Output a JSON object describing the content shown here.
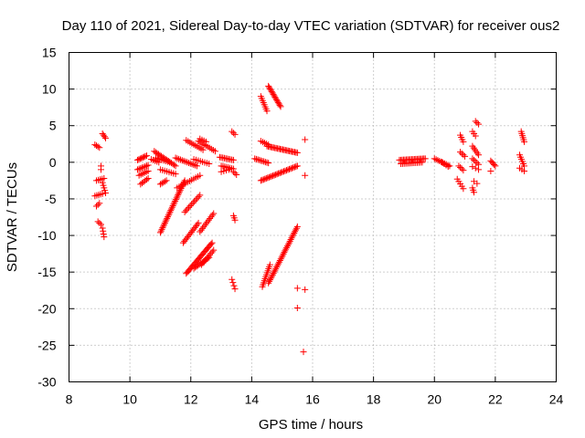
{
  "chart_data": {
    "type": "scatter",
    "title": "Day 110 of 2021, Sidereal Day-to-day VTEC variation (SDTVAR) for receiver ous2",
    "xlabel": "GPS time / hours",
    "ylabel": "SDTVAR / TECUs",
    "xlim": [
      8,
      24
    ],
    "ylim": [
      -30,
      15
    ],
    "xticks": [
      8,
      10,
      12,
      14,
      16,
      18,
      20,
      22,
      24
    ],
    "yticks": [
      15,
      10,
      5,
      0,
      -5,
      -10,
      -15,
      -20,
      -25,
      -30
    ],
    "xtick_labels": [
      "8",
      "10",
      "12",
      "14",
      "16",
      "18",
      "20",
      "22",
      "24"
    ],
    "ytick_labels": [
      "15",
      "10",
      "5",
      "0",
      "-5",
      "-10",
      "-15",
      "-20",
      "-25",
      "-30"
    ],
    "grid": true,
    "marker": "+",
    "color": "#ff0000",
    "segments": [
      {
        "x0": 8.85,
        "x1": 9.0,
        "y0": 2.4,
        "y1": 2.0,
        "n": 4
      },
      {
        "x0": 8.9,
        "x1": 9.15,
        "y0": -2.5,
        "y1": -2.2,
        "n": 5
      },
      {
        "x0": 8.85,
        "x1": 9.1,
        "y0": -4.6,
        "y1": -4.3,
        "n": 5
      },
      {
        "x0": 8.9,
        "x1": 9.0,
        "y0": -6.0,
        "y1": -5.6,
        "n": 3
      },
      {
        "x0": 8.95,
        "x1": 9.05,
        "y0": -8.1,
        "y1": -8.5,
        "n": 3
      },
      {
        "x0": 9.05,
        "x1": 9.05,
        "y0": -0.5,
        "y1": -1.0,
        "n": 2
      },
      {
        "x0": 9.1,
        "x1": 9.2,
        "y0": 3.9,
        "y1": 3.3,
        "n": 4
      },
      {
        "x0": 9.1,
        "x1": 9.2,
        "y0": -2.8,
        "y1": -4.2,
        "n": 5
      },
      {
        "x0": 9.1,
        "x1": 9.15,
        "y0": -9.0,
        "y1": -10.2,
        "n": 4
      },
      {
        "x0": 10.25,
        "x1": 10.55,
        "y0": 0.3,
        "y1": 0.9,
        "n": 8
      },
      {
        "x0": 10.25,
        "x1": 10.6,
        "y0": -1.0,
        "y1": -0.4,
        "n": 8
      },
      {
        "x0": 10.3,
        "x1": 10.6,
        "y0": -1.8,
        "y1": -1.2,
        "n": 6
      },
      {
        "x0": 10.35,
        "x1": 10.6,
        "y0": -3.0,
        "y1": -2.2,
        "n": 6
      },
      {
        "x0": 10.7,
        "x1": 10.95,
        "y0": 0.4,
        "y1": 0.0,
        "n": 5
      },
      {
        "x0": 10.8,
        "x1": 11.5,
        "y0": 1.5,
        "y1": -0.5,
        "n": 16
      },
      {
        "x0": 10.85,
        "x1": 11.3,
        "y0": 0.6,
        "y1": 0.0,
        "n": 8
      },
      {
        "x0": 11.0,
        "x1": 11.5,
        "y0": -1.0,
        "y1": -1.6,
        "n": 8
      },
      {
        "x0": 11.0,
        "x1": 11.2,
        "y0": -3.0,
        "y1": -2.5,
        "n": 5
      },
      {
        "x0": 11.0,
        "x1": 11.8,
        "y0": -9.6,
        "y1": -2.5,
        "n": 34
      },
      {
        "x0": 11.5,
        "x1": 12.2,
        "y0": 0.6,
        "y1": -0.5,
        "n": 14
      },
      {
        "x0": 11.55,
        "x1": 12.3,
        "y0": -3.5,
        "y1": -1.8,
        "n": 12
      },
      {
        "x0": 11.8,
        "x1": 12.3,
        "y0": -6.8,
        "y1": -4.5,
        "n": 12
      },
      {
        "x0": 11.75,
        "x1": 12.25,
        "y0": -11.0,
        "y1": -8.3,
        "n": 14
      },
      {
        "x0": 11.85,
        "x1": 12.7,
        "y0": -15.2,
        "y1": -11.0,
        "n": 26
      },
      {
        "x0": 11.85,
        "x1": 12.4,
        "y0": 3.0,
        "y1": 1.7,
        "n": 10
      },
      {
        "x0": 12.1,
        "x1": 12.6,
        "y0": 0.4,
        "y1": -0.2,
        "n": 8
      },
      {
        "x0": 12.25,
        "x1": 12.8,
        "y0": 2.9,
        "y1": 1.5,
        "n": 10
      },
      {
        "x0": 12.3,
        "x1": 12.75,
        "y0": -9.5,
        "y1": -7.0,
        "n": 12
      },
      {
        "x0": 12.1,
        "x1": 12.6,
        "y0": -14.5,
        "y1": -13.0,
        "n": 12
      },
      {
        "x0": 12.35,
        "x1": 12.75,
        "y0": -14.0,
        "y1": -12.0,
        "n": 10
      },
      {
        "x0": 12.3,
        "x1": 12.5,
        "y0": 3.2,
        "y1": 2.8,
        "n": 4
      },
      {
        "x0": 12.95,
        "x1": 13.4,
        "y0": 0.7,
        "y1": 0.3,
        "n": 10
      },
      {
        "x0": 13.0,
        "x1": 13.4,
        "y0": -0.5,
        "y1": -0.9,
        "n": 8
      },
      {
        "x0": 13.0,
        "x1": 13.25,
        "y0": -1.3,
        "y1": -1.0,
        "n": 4
      },
      {
        "x0": 13.35,
        "x1": 13.45,
        "y0": 4.2,
        "y1": 3.8,
        "n": 3
      },
      {
        "x0": 13.4,
        "x1": 13.5,
        "y0": -1.3,
        "y1": -1.7,
        "n": 3
      },
      {
        "x0": 13.4,
        "x1": 13.45,
        "y0": -7.3,
        "y1": -7.9,
        "n": 3
      },
      {
        "x0": 13.35,
        "x1": 13.45,
        "y0": -16.0,
        "y1": -17.3,
        "n": 4
      },
      {
        "x0": 14.1,
        "x1": 14.55,
        "y0": 0.5,
        "y1": -0.1,
        "n": 10
      },
      {
        "x0": 14.3,
        "x1": 14.5,
        "y0": 9.0,
        "y1": 7.0,
        "n": 8
      },
      {
        "x0": 14.3,
        "x1": 14.55,
        "y0": 2.9,
        "y1": 2.4,
        "n": 5
      },
      {
        "x0": 14.5,
        "x1": 15.5,
        "y0": 2.2,
        "y1": 1.3,
        "n": 24
      },
      {
        "x0": 14.55,
        "x1": 14.95,
        "y0": 10.4,
        "y1": 7.6,
        "n": 16
      },
      {
        "x0": 14.3,
        "x1": 15.5,
        "y0": -2.5,
        "y1": -0.5,
        "n": 28
      },
      {
        "x0": 14.35,
        "x1": 14.6,
        "y0": -17.0,
        "y1": -14.0,
        "n": 12
      },
      {
        "x0": 14.55,
        "x1": 15.5,
        "y0": -16.5,
        "y1": -8.8,
        "n": 36
      },
      {
        "x0": 15.5,
        "x1": 15.5,
        "y0": -17.2,
        "y1": -17.2,
        "n": 1
      },
      {
        "x0": 15.5,
        "x1": 15.5,
        "y0": -19.9,
        "y1": -19.9,
        "n": 1
      },
      {
        "x0": 15.75,
        "x1": 15.75,
        "y0": 3.1,
        "y1": 3.1,
        "n": 1
      },
      {
        "x0": 15.75,
        "x1": 15.75,
        "y0": -1.8,
        "y1": -1.8,
        "n": 1
      },
      {
        "x0": 15.75,
        "x1": 15.75,
        "y0": -17.4,
        "y1": -17.4,
        "n": 1
      },
      {
        "x0": 15.7,
        "x1": 15.7,
        "y0": -25.9,
        "y1": -25.9,
        "n": 1
      },
      {
        "x0": 18.85,
        "x1": 19.7,
        "y0": 0.3,
        "y1": 0.5,
        "n": 20
      },
      {
        "x0": 18.9,
        "x1": 19.6,
        "y0": -0.2,
        "y1": 0.0,
        "n": 14
      },
      {
        "x0": 20.0,
        "x1": 20.5,
        "y0": 0.5,
        "y1": -0.5,
        "n": 10
      },
      {
        "x0": 20.25,
        "x1": 20.45,
        "y0": 0.0,
        "y1": -0.6,
        "n": 4
      },
      {
        "x0": 20.85,
        "x1": 20.95,
        "y0": 3.7,
        "y1": 2.8,
        "n": 4
      },
      {
        "x0": 20.85,
        "x1": 21.0,
        "y0": 1.4,
        "y1": 0.8,
        "n": 4
      },
      {
        "x0": 20.8,
        "x1": 20.95,
        "y0": -0.5,
        "y1": -1.1,
        "n": 4
      },
      {
        "x0": 20.75,
        "x1": 20.95,
        "y0": -2.3,
        "y1": -3.6,
        "n": 5
      },
      {
        "x0": 21.25,
        "x1": 21.35,
        "y0": 4.2,
        "y1": 3.6,
        "n": 3
      },
      {
        "x0": 21.35,
        "x1": 21.45,
        "y0": 5.6,
        "y1": 5.2,
        "n": 3
      },
      {
        "x0": 21.25,
        "x1": 21.45,
        "y0": 2.2,
        "y1": 1.0,
        "n": 6
      },
      {
        "x0": 21.25,
        "x1": 21.45,
        "y0": 0.5,
        "y1": -0.3,
        "n": 5
      },
      {
        "x0": 21.25,
        "x1": 21.45,
        "y0": -0.6,
        "y1": -1.0,
        "n": 3
      },
      {
        "x0": 21.3,
        "x1": 21.4,
        "y0": -2.6,
        "y1": -2.9,
        "n": 2
      },
      {
        "x0": 21.25,
        "x1": 21.3,
        "y0": -3.5,
        "y1": -4.1,
        "n": 3
      },
      {
        "x0": 21.85,
        "x1": 22.0,
        "y0": 0.2,
        "y1": -0.5,
        "n": 5
      },
      {
        "x0": 21.85,
        "x1": 21.9,
        "y0": -1.2,
        "y1": -1.2,
        "n": 1
      },
      {
        "x0": 22.85,
        "x1": 22.95,
        "y0": 4.2,
        "y1": 2.8,
        "n": 6
      },
      {
        "x0": 22.8,
        "x1": 22.95,
        "y0": 1.0,
        "y1": -0.5,
        "n": 6
      },
      {
        "x0": 22.8,
        "x1": 22.95,
        "y0": -0.8,
        "y1": -1.2,
        "n": 3
      }
    ]
  }
}
